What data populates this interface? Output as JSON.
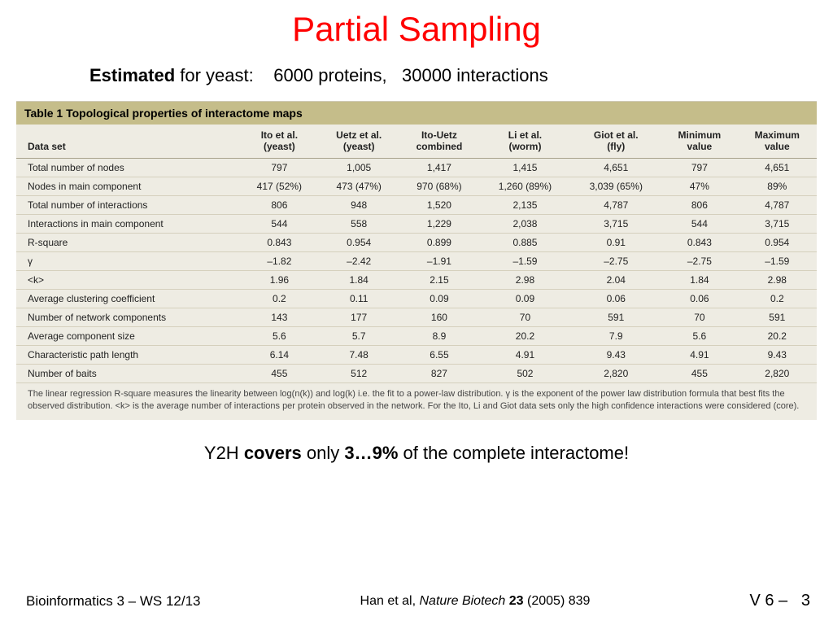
{
  "title": "Partial Sampling",
  "estimate": {
    "prefix_bold": "Estimated",
    "prefix_rest": " for yeast:",
    "proteins": "6000 proteins,",
    "interactions": "30000 interactions"
  },
  "table": {
    "header_bar": "Table 1  Topological properties of interactome maps",
    "columns": [
      "Data set",
      "Ito et al.\n(yeast)",
      "Uetz et al.\n(yeast)",
      "Ito-Uetz\ncombined",
      "Li et al.\n(worm)",
      "Giot et al.\n(fly)",
      "Minimum\nvalue",
      "Maximum\nvalue"
    ],
    "rows": [
      [
        "Total number of nodes",
        "797",
        "1,005",
        "1,417",
        "1,415",
        "4,651",
        "797",
        "4,651"
      ],
      [
        "Nodes in main component",
        "417 (52%)",
        "473 (47%)",
        "970 (68%)",
        "1,260 (89%)",
        "3,039 (65%)",
        "47%",
        "89%"
      ],
      [
        "Total number of interactions",
        "806",
        "948",
        "1,520",
        "2,135",
        "4,787",
        "806",
        "4,787"
      ],
      [
        "Interactions in main component",
        "544",
        "558",
        "1,229",
        "2,038",
        "3,715",
        "544",
        "3,715"
      ],
      [
        "R-square",
        "0.843",
        "0.954",
        "0.899",
        "0.885",
        "0.91",
        "0.843",
        "0.954"
      ],
      [
        "γ",
        "–1.82",
        "–2.42",
        "–1.91",
        "–1.59",
        "–2.75",
        "–2.75",
        "–1.59"
      ],
      [
        "<k>",
        "1.96",
        "1.84",
        "2.15",
        "2.98",
        "2.04",
        "1.84",
        "2.98"
      ],
      [
        "Average clustering coefficient",
        "0.2",
        "0.11",
        "0.09",
        "0.09",
        "0.06",
        "0.06",
        "0.2"
      ],
      [
        "Number of network components",
        "143",
        "177",
        "160",
        "70",
        "591",
        "70",
        "591"
      ],
      [
        "Average component size",
        "5.6",
        "5.7",
        "8.9",
        "20.2",
        "7.9",
        "5.6",
        "20.2"
      ],
      [
        "Characteristic path length",
        "6.14",
        "7.48",
        "6.55",
        "4.91",
        "9.43",
        "4.91",
        "9.43"
      ],
      [
        "Number of baits",
        "455",
        "512",
        "827",
        "502",
        "2,820",
        "455",
        "2,820"
      ]
    ],
    "footnote": "The linear regression R-square measures the linearity between log(n(k)) and log(k) i.e. the fit to a power-law distribution. γ is the exponent of the power law distribution formula that best fits the observed distribution. <k> is the average number of interactions per protein observed in the network. For the Ito, Li and Giot data sets only the high confidence interactions were considered (core)."
  },
  "coverage": {
    "pre": "Y2H ",
    "bold1": "covers",
    "mid": " only ",
    "bold2": "3…9%",
    "post": " of the complete interactome!"
  },
  "footer": {
    "left": "Bioinformatics 3 – WS 12/13",
    "citation_pre": "Han et al, ",
    "citation_journal": "Nature Biotech",
    "citation_vol": " 23",
    "citation_rest": " (2005) 839",
    "pagenum_pre": "V 6  –",
    "pagenum": "3"
  },
  "colors": {
    "title": "#ff0000",
    "table_bg": "#eeece3",
    "header_bar_bg": "#c5bd8a",
    "rule": "#a8a28c"
  }
}
